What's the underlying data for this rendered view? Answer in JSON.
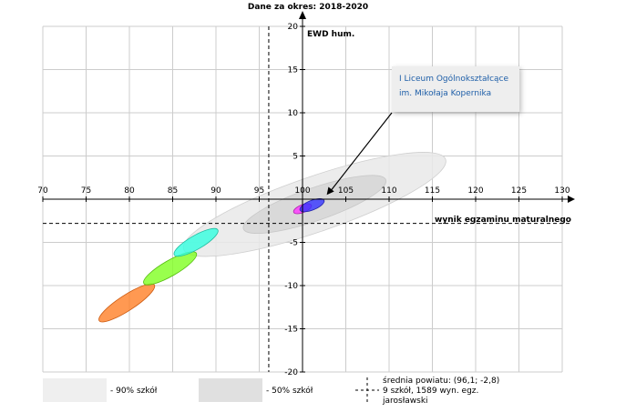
{
  "chart_data": {
    "type": "scatter",
    "title": "Dane za okres: 2018-2020",
    "xlabel": "wynik egzaminu maturalnego",
    "ylabel": "EWD hum.",
    "xlim": [
      70,
      130
    ],
    "ylim": [
      -20,
      20
    ],
    "xticks": [
      70,
      75,
      80,
      85,
      90,
      95,
      100,
      105,
      110,
      115,
      120,
      125,
      130
    ],
    "yticks": [
      -20,
      -15,
      -10,
      -5,
      5,
      10,
      15,
      20
    ],
    "grid": true,
    "reference_lines": {
      "x": 96.1,
      "y": -2.8
    },
    "ellipses": [
      {
        "id": "area-90",
        "cx": 101.4,
        "cy": -0.6,
        "rx": 16.0,
        "ry": 3.2,
        "angle_deg": 19,
        "color": "#e9e9e9",
        "stroke": "#cfcfcf"
      },
      {
        "id": "area-50",
        "cx": 101.4,
        "cy": -0.6,
        "rx": 8.7,
        "ry": 1.9,
        "angle_deg": 19,
        "color": "#d6d6d6",
        "stroke": "#c8c8c8"
      },
      {
        "id": "school-orange",
        "cx": 79.7,
        "cy": -12.0,
        "rx": 3.8,
        "ry": 0.9,
        "angle_deg": 33,
        "color": "#ff7f27",
        "stroke": "#cc5a10"
      },
      {
        "id": "school-green",
        "cx": 84.7,
        "cy": -8.0,
        "rx": 3.5,
        "ry": 0.9,
        "angle_deg": 30,
        "color": "#7fff20",
        "stroke": "#55bb10"
      },
      {
        "id": "school-cyan",
        "cx": 87.7,
        "cy": -5.0,
        "rx": 2.9,
        "ry": 0.8,
        "angle_deg": 30,
        "color": "#33ffe0",
        "stroke": "#22bba0"
      },
      {
        "id": "school-magenta",
        "cx": 100.0,
        "cy": -1.1,
        "rx": 1.1,
        "ry": 0.45,
        "angle_deg": 22,
        "color": "#ff33ff",
        "stroke": "#aa22aa"
      },
      {
        "id": "school-blue",
        "cx": 101.1,
        "cy": -0.7,
        "rx": 1.5,
        "ry": 0.55,
        "angle_deg": 22,
        "color": "#3333ff",
        "stroke": "#2222aa"
      }
    ],
    "annotation": {
      "lines": [
        "I Liceum Ogólnokształcące",
        "im. Mikołaja Kopernika"
      ],
      "arrow_to": [
        102.8,
        0.5
      ]
    },
    "legend": {
      "placement": "bottom",
      "items": [
        {
          "label": "- 90% szkół",
          "color": "#efefef"
        },
        {
          "label": "- 50% szkół",
          "color": "#e0e0e0"
        }
      ],
      "reference_lines": [
        "średnia powiatu: (96,1; -2,8)",
        "9 szkół, 1589 wyn. egz.",
        "jarosławski"
      ]
    }
  }
}
